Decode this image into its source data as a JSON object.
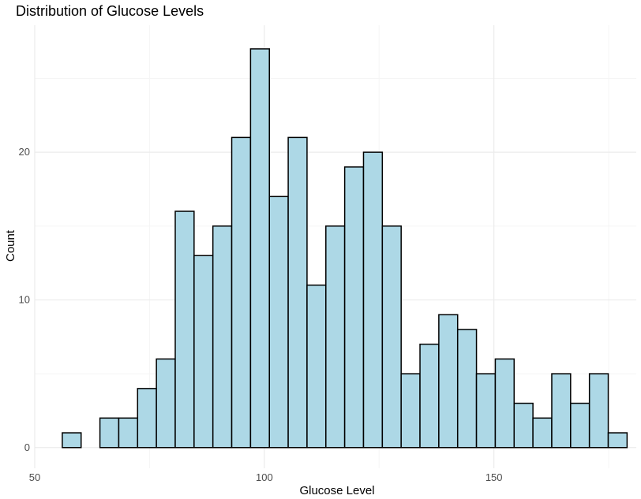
{
  "chart_data": {
    "type": "bar",
    "title": "Distribution of Glucose Levels",
    "xlabel": "Glucose Level",
    "ylabel": "Count",
    "bin_width": 4.1,
    "bins": [
      {
        "x0": 56.0,
        "x1": 60.1,
        "count": 1
      },
      {
        "x0": 60.1,
        "x1": 64.2,
        "count": 0
      },
      {
        "x0": 64.2,
        "x1": 68.3,
        "count": 2
      },
      {
        "x0": 68.3,
        "x1": 72.4,
        "count": 2
      },
      {
        "x0": 72.4,
        "x1": 76.5,
        "count": 4
      },
      {
        "x0": 76.5,
        "x1": 80.6,
        "count": 6
      },
      {
        "x0": 80.6,
        "x1": 84.7,
        "count": 16
      },
      {
        "x0": 84.7,
        "x1": 88.8,
        "count": 13
      },
      {
        "x0": 88.8,
        "x1": 92.9,
        "count": 15
      },
      {
        "x0": 92.9,
        "x1": 97.0,
        "count": 21
      },
      {
        "x0": 97.0,
        "x1": 101.1,
        "count": 27
      },
      {
        "x0": 101.1,
        "x1": 105.2,
        "count": 17
      },
      {
        "x0": 105.2,
        "x1": 109.3,
        "count": 21
      },
      {
        "x0": 109.3,
        "x1": 113.4,
        "count": 11
      },
      {
        "x0": 113.4,
        "x1": 117.5,
        "count": 15
      },
      {
        "x0": 117.5,
        "x1": 121.6,
        "count": 19
      },
      {
        "x0": 121.6,
        "x1": 125.7,
        "count": 20
      },
      {
        "x0": 125.7,
        "x1": 129.8,
        "count": 15
      },
      {
        "x0": 129.8,
        "x1": 133.9,
        "count": 5
      },
      {
        "x0": 133.9,
        "x1": 138.0,
        "count": 7
      },
      {
        "x0": 138.0,
        "x1": 142.1,
        "count": 9
      },
      {
        "x0": 142.1,
        "x1": 146.2,
        "count": 8
      },
      {
        "x0": 146.2,
        "x1": 150.3,
        "count": 5
      },
      {
        "x0": 150.3,
        "x1": 154.4,
        "count": 6
      },
      {
        "x0": 154.4,
        "x1": 158.5,
        "count": 3
      },
      {
        "x0": 158.5,
        "x1": 162.6,
        "count": 2
      },
      {
        "x0": 162.6,
        "x1": 166.7,
        "count": 5
      },
      {
        "x0": 166.7,
        "x1": 170.8,
        "count": 3
      },
      {
        "x0": 170.8,
        "x1": 174.9,
        "count": 5
      },
      {
        "x0": 174.9,
        "x1": 179.0,
        "count": 1
      }
    ],
    "xlim": [
      50,
      181
    ],
    "ylim": [
      -1.4,
      28.6
    ],
    "x_ticks": [
      50,
      100,
      150
    ],
    "y_ticks": [
      0,
      10,
      20
    ],
    "x_minor_gridlines": [
      75,
      125,
      175
    ],
    "y_minor_gridlines": [
      5,
      15,
      25
    ],
    "grid": true,
    "legend": "none",
    "colors": {
      "bar_fill": "#ADD8E6",
      "bar_stroke": "#000000",
      "grid_major": "#EBEBEB",
      "grid_minor": "#F5F5F5",
      "tick_text": "#4D4D4D",
      "axis_title": "#000000"
    }
  }
}
